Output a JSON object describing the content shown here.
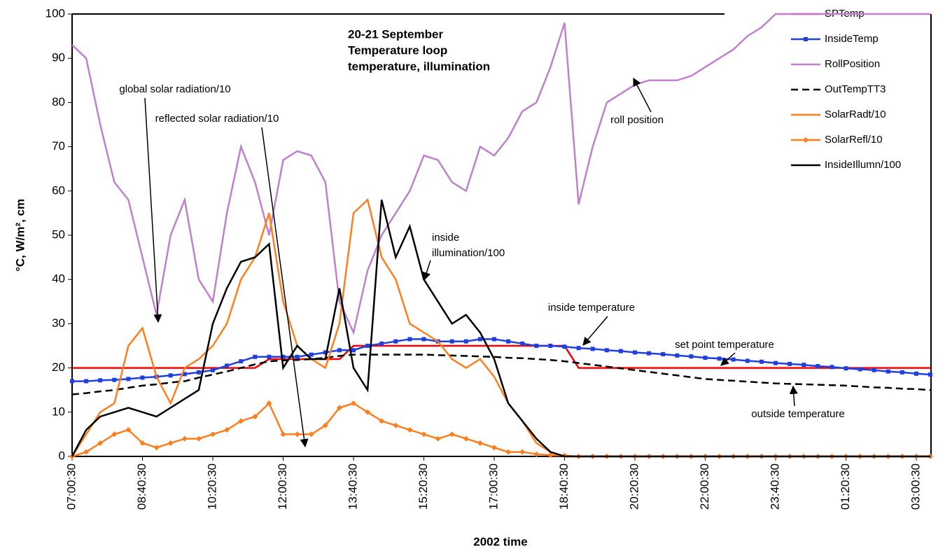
{
  "chart_data": {
    "type": "line",
    "title": [
      "20-21 September",
      "Temperature loop",
      "temperature, illumination"
    ],
    "xlabel": "2002 time",
    "ylabel": "°C, W/m², cm",
    "categories": [
      "07:00:30",
      null,
      null,
      null,
      null,
      "08:40:30",
      null,
      null,
      null,
      null,
      "10:20:30",
      null,
      null,
      null,
      null,
      "12:00:30",
      null,
      null,
      null,
      null,
      "13:40:30",
      null,
      null,
      null,
      null,
      "15:20:30",
      null,
      null,
      null,
      null,
      "17:00:30",
      null,
      null,
      null,
      null,
      "18:40:30",
      null,
      null,
      null,
      null,
      "20:20:30",
      null,
      null,
      null,
      null,
      "22:00:30",
      null,
      null,
      null,
      null,
      "23:40:30",
      null,
      null,
      null,
      null,
      "01:20:30",
      null,
      null,
      null,
      null,
      "03:00:30",
      null
    ],
    "ylim": [
      0,
      100
    ],
    "yticks": [
      0,
      10,
      20,
      30,
      40,
      50,
      60,
      70,
      80,
      90,
      100
    ],
    "series": [
      {
        "name": "SPTemp",
        "color": "#ff0000",
        "values": [
          20,
          20,
          20,
          20,
          20,
          20,
          20,
          20,
          20,
          20,
          20,
          20,
          20,
          20,
          22,
          22,
          22,
          22,
          22,
          22,
          25,
          25,
          25,
          25,
          25,
          25,
          25,
          25,
          25,
          25,
          25,
          25,
          25,
          25,
          25,
          25,
          20,
          20,
          20,
          20,
          20,
          20,
          20,
          20,
          20,
          20,
          20,
          20,
          20,
          20,
          20,
          20,
          20,
          20,
          20,
          20,
          20,
          20,
          20,
          20,
          20,
          20
        ]
      },
      {
        "name": "InsideTemp",
        "color": "#1f3fe0",
        "marker": "square",
        "values": [
          17,
          17,
          17.2,
          17.3,
          17.5,
          17.8,
          18,
          18.3,
          18.6,
          19,
          19.5,
          20.5,
          21.5,
          22.5,
          22.5,
          22.5,
          22.5,
          23,
          23.5,
          24,
          24,
          25,
          25.5,
          26,
          26.5,
          26.5,
          26,
          26,
          26,
          26.5,
          26.5,
          26,
          25.5,
          25,
          25,
          24.8,
          24.5,
          24.3,
          24,
          23.8,
          23.5,
          23.3,
          23.1,
          22.8,
          22.6,
          22.3,
          22.1,
          21.9,
          21.6,
          21.4,
          21.1,
          20.9,
          20.7,
          20.4,
          20.2,
          19.9,
          19.7,
          19.5,
          19.2,
          19,
          18.7,
          18.5
        ]
      },
      {
        "name": "RollPosition",
        "color": "#c080d0",
        "values": [
          93,
          90,
          75,
          62,
          58,
          45,
          32,
          50,
          58,
          40,
          35,
          55,
          70,
          62,
          50,
          67,
          69,
          68,
          62,
          35,
          28,
          42,
          50,
          55,
          60,
          68,
          67,
          62,
          60,
          70,
          68,
          72,
          78,
          80,
          88,
          98,
          57,
          70,
          80,
          82,
          84,
          85,
          85,
          85,
          86,
          88,
          90,
          92,
          95,
          97,
          100,
          100,
          100,
          100,
          100,
          100,
          100,
          100,
          100,
          100,
          100,
          100
        ]
      },
      {
        "name": "OutTempTT3",
        "color": "#000000",
        "dash": true,
        "values": [
          14,
          14.3,
          14.7,
          15,
          15.5,
          16,
          16.3,
          16.7,
          17,
          17.8,
          18.5,
          19.2,
          20,
          20.8,
          21.5,
          21.7,
          21.8,
          22,
          22.3,
          22.7,
          23,
          23,
          23,
          23,
          23,
          23,
          22.9,
          22.8,
          22.7,
          22.6,
          22.5,
          22.3,
          22.2,
          22,
          21.8,
          21.5,
          21.1,
          20.7,
          20.3,
          19.9,
          19.5,
          19.1,
          18.7,
          18.3,
          17.9,
          17.5,
          17.3,
          17.1,
          16.9,
          16.7,
          16.5,
          16.4,
          16.3,
          16.2,
          16.1,
          16,
          15.8,
          15.6,
          15.5,
          15.3,
          15.2,
          15
        ]
      },
      {
        "name": "SolarRadt/10",
        "color": "#ff7f1f",
        "values": [
          0,
          5,
          10,
          12,
          25,
          29,
          18,
          12,
          20,
          22,
          25,
          30,
          40,
          45,
          55,
          35,
          25,
          22,
          20,
          30,
          55,
          58,
          45,
          40,
          30,
          28,
          26,
          22,
          20,
          22,
          18,
          12,
          8,
          3,
          1,
          0,
          0,
          0,
          0,
          0,
          0,
          0,
          0,
          0,
          0,
          0,
          0,
          0,
          0,
          0,
          0,
          0,
          0,
          0,
          0,
          0,
          0,
          0,
          0,
          0,
          0,
          0
        ]
      },
      {
        "name": "SolarRefl/10",
        "color": "#ff7f1f",
        "marker": "diamond",
        "values": [
          0,
          1,
          3,
          5,
          6,
          3,
          2,
          3,
          4,
          4,
          5,
          6,
          8,
          9,
          12,
          5,
          5,
          5,
          7,
          11,
          12,
          10,
          8,
          7,
          6,
          5,
          4,
          5,
          4,
          3,
          2,
          1,
          1,
          0.5,
          0.3,
          0.2,
          0,
          0,
          0,
          0,
          0,
          0,
          0,
          0,
          0,
          0,
          0,
          0,
          0,
          0,
          0,
          0,
          0,
          0,
          0,
          0,
          0,
          0,
          0,
          0,
          0,
          0
        ]
      },
      {
        "name": "InsideIllumn/100",
        "color": "#000000",
        "values": [
          0,
          6,
          9,
          10,
          11,
          10,
          9,
          11,
          13,
          15,
          30,
          38,
          44,
          45,
          48,
          20,
          25,
          22,
          22,
          38,
          20,
          15,
          58,
          45,
          52,
          40,
          35,
          30,
          32,
          28,
          22,
          12,
          8,
          4,
          1,
          0,
          0,
          0,
          0,
          0,
          0,
          0,
          0,
          0,
          0,
          0,
          0,
          0,
          0,
          0,
          0,
          0,
          0,
          0,
          0,
          0,
          0,
          0,
          0,
          0,
          0,
          0
        ]
      }
    ],
    "annotations": [
      [
        "global solar radiation/10"
      ],
      [
        "reflected solar radiation/10"
      ],
      [
        "roll position"
      ],
      [
        "inside",
        "illumination/100"
      ],
      [
        "inside temperature"
      ],
      [
        "set point temperature"
      ],
      [
        "outside temperature"
      ]
    ]
  }
}
